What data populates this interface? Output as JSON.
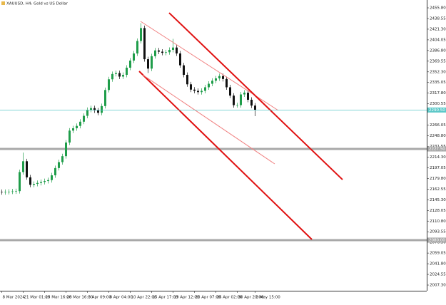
{
  "chart_data": {
    "type": "candlestick",
    "title": "XAUUSD, H4:  Gold vs US Dollar",
    "xlim": [
      -0.5,
      119.1
    ],
    "ylim": [
      1998.1,
      2468.5
    ],
    "yticks": [
      {
        "value": 2007.3,
        "label": "2007.30"
      },
      {
        "value": 2024.55,
        "label": "2024.55"
      },
      {
        "value": 2041.8,
        "label": "2041.80"
      },
      {
        "value": 2059.05,
        "label": "2059.05"
      },
      {
        "value": 2076.3,
        "label": "2076.30"
      },
      {
        "value": 2093.55,
        "label": "2093.55"
      },
      {
        "value": 2110.8,
        "label": "2110.80"
      },
      {
        "value": 2128.05,
        "label": "2128.05"
      },
      {
        "value": 2145.3,
        "label": "2145.30"
      },
      {
        "value": 2162.55,
        "label": "2162.55"
      },
      {
        "value": 2179.8,
        "label": "2179.80"
      },
      {
        "value": 2197.05,
        "label": "2197.05"
      },
      {
        "value": 2214.3,
        "label": "2214.30"
      },
      {
        "value": 2231.55,
        "label": "2231.55"
      },
      {
        "value": 2248.8,
        "label": "2248.80"
      },
      {
        "value": 2266.05,
        "label": "2266.05"
      },
      {
        "value": 2300.55,
        "label": "2300.55"
      },
      {
        "value": 2317.8,
        "label": "2317.80"
      },
      {
        "value": 2335.05,
        "label": "2335.05"
      },
      {
        "value": 2352.3,
        "label": "2352.30"
      },
      {
        "value": 2369.55,
        "label": "2369.55"
      },
      {
        "value": 2386.8,
        "label": "2386.80"
      },
      {
        "value": 2404.05,
        "label": "2404.05"
      },
      {
        "value": 2421.3,
        "label": "2421.30"
      },
      {
        "value": 2438.55,
        "label": "2438.55"
      },
      {
        "value": 2455.8,
        "label": "2455.80"
      }
    ],
    "xticks": [
      {
        "value": 0,
        "label": "8 Mar 2024"
      },
      {
        "value": 6,
        "label": "21 Mar 01:00"
      },
      {
        "value": 12,
        "label": "25 Mar 16:00"
      },
      {
        "value": 18,
        "label": "28 Mar 16:00"
      },
      {
        "value": 24,
        "label": "3 Apr 09:00"
      },
      {
        "value": 30,
        "label": "8 Apr 04:00"
      },
      {
        "value": 36,
        "label": "10 Apr 22:00"
      },
      {
        "value": 42,
        "label": "15 Apr 17:00"
      },
      {
        "value": 48,
        "label": "19 Apr 12:00"
      },
      {
        "value": 54,
        "label": "23 Apr 07:00"
      },
      {
        "value": 60,
        "label": "26 Apr 02:00"
      },
      {
        "value": 66,
        "label": "30 Apr 20:00"
      },
      {
        "value": 71,
        "label": "3 May 15:00"
      }
    ],
    "open": [
      2158.0,
      2157.4,
      2157.9,
      2158.4,
      2158.8,
      2159.3,
      2190.1,
      2207.6,
      2181.6,
      2169.5,
      2171.0,
      2172.5,
      2174.1,
      2175.6,
      2177.1,
      2184.9,
      2196.6,
      2206.2,
      2215.8,
      2237.9,
      2257.2,
      2261.0,
      2264.8,
      2271.6,
      2281.1,
      2290.7,
      2293.6,
      2289.8,
      2286.0,
      2296.9,
      2322.9,
      2340.2,
      2348.8,
      2350.3,
      2344.6,
      2347.4,
      2359.0,
      2370.5,
      2382.0,
      2402.2,
      2423.1,
      2372.7,
      2357.5,
      2377.6,
      2386.9,
      2384.9,
      2383.0,
      2384.0,
      2387.8,
      2391.6,
      2382.0,
      2362.8,
      2347.4,
      2332.1,
      2323.5,
      2321.5,
      2319.5,
      2321.5,
      2327.3,
      2333.0,
      2337.9,
      2341.7,
      2345.5,
      2340.7,
      2327.3,
      2313.8,
      2298.4,
      2298.4,
      2315.7,
      2318.6,
      2307.1,
      2297.7
    ],
    "high": [
      2162.0,
      2161.9,
      2162.4,
      2162.8,
      2163.3,
      2194.1,
      2221.6,
      2211.6,
      2185.6,
      2175.0,
      2176.5,
      2178.1,
      2179.6,
      2181.1,
      2188.9,
      2200.6,
      2210.2,
      2219.8,
      2241.9,
      2261.2,
      2265.0,
      2268.8,
      2275.6,
      2285.1,
      2294.7,
      2297.6,
      2297.6,
      2293.8,
      2300.9,
      2326.9,
      2344.2,
      2352.8,
      2354.3,
      2354.3,
      2351.4,
      2363.0,
      2374.5,
      2386.0,
      2406.2,
      2431.1,
      2427.1,
      2376.7,
      2381.6,
      2390.9,
      2390.9,
      2388.9,
      2388.0,
      2391.8,
      2405.6,
      2395.6,
      2386.0,
      2366.8,
      2351.4,
      2336.1,
      2327.5,
      2325.5,
      2325.5,
      2331.3,
      2337.0,
      2341.9,
      2345.7,
      2349.5,
      2349.5,
      2344.7,
      2331.3,
      2317.8,
      2302.4,
      2319.7,
      2322.6,
      2322.6,
      2311.1,
      2301.7
    ],
    "low": [
      2153.4,
      2153.4,
      2153.9,
      2154.4,
      2154.8,
      2155.3,
      2186.1,
      2177.6,
      2165.5,
      2165.5,
      2167.0,
      2168.5,
      2170.1,
      2171.6,
      2173.1,
      2180.9,
      2192.6,
      2202.2,
      2211.8,
      2233.9,
      2253.2,
      2257.0,
      2260.8,
      2267.6,
      2277.1,
      2286.7,
      2285.8,
      2282.0,
      2282.0,
      2292.9,
      2318.9,
      2336.2,
      2344.8,
      2340.6,
      2340.6,
      2343.4,
      2355.0,
      2366.5,
      2378.0,
      2398.2,
      2368.7,
      2350.5,
      2353.5,
      2373.6,
      2380.9,
      2379.0,
      2379.0,
      2380.0,
      2383.8,
      2378.0,
      2358.8,
      2343.4,
      2328.1,
      2319.5,
      2317.5,
      2315.5,
      2315.5,
      2317.5,
      2323.3,
      2329.0,
      2333.9,
      2337.7,
      2336.7,
      2323.3,
      2309.8,
      2294.4,
      2294.4,
      2294.4,
      2311.7,
      2303.1,
      2293.7,
      2280.5
    ],
    "close": [
      2157.4,
      2157.9,
      2158.4,
      2158.8,
      2159.3,
      2190.1,
      2207.6,
      2181.6,
      2169.5,
      2171.0,
      2172.5,
      2174.1,
      2175.6,
      2177.1,
      2184.9,
      2196.6,
      2206.2,
      2215.8,
      2237.9,
      2257.2,
      2261.0,
      2264.8,
      2271.6,
      2281.1,
      2290.7,
      2293.6,
      2289.8,
      2286.0,
      2296.9,
      2322.9,
      2340.2,
      2348.8,
      2350.3,
      2344.6,
      2347.4,
      2359.0,
      2370.5,
      2382.0,
      2402.2,
      2423.1,
      2372.7,
      2357.5,
      2377.6,
      2386.9,
      2384.9,
      2383.0,
      2384.0,
      2387.8,
      2391.6,
      2382.0,
      2362.8,
      2347.4,
      2332.1,
      2323.5,
      2321.5,
      2319.5,
      2321.5,
      2327.3,
      2333.0,
      2337.9,
      2341.7,
      2345.5,
      2340.7,
      2327.3,
      2313.8,
      2298.4,
      2298.4,
      2315.7,
      2318.6,
      2307.1,
      2297.7,
      2290.5
    ],
    "colors": {
      "up": "#1f9d4a",
      "down": "#111111"
    },
    "price_line": {
      "value": 2290.5,
      "label": "2290.50",
      "color": "#5cc8c8"
    },
    "levels": [
      {
        "value": 2227.5,
        "label": "2227.50",
        "color": "#a8a8a8"
      },
      {
        "value": 2080.0,
        "label": "2080.00",
        "color": "#a8a8a8"
      }
    ],
    "trendlines": [
      {
        "x": [
          38.9,
          77.5
        ],
        "y": [
          2433.9,
          2289.8
        ],
        "color": "#f08080",
        "width": 1
      },
      {
        "x": [
          46.9,
          95.5
        ],
        "y": [
          2447.7,
          2177.9
        ],
        "color": "#e01010",
        "width": 2
      },
      {
        "x": [
          38.5,
          86.9
        ],
        "y": [
          2353.2,
          2081.1
        ],
        "color": "#e01010",
        "width": 2
      },
      {
        "x": [
          39.5,
          76.5
        ],
        "y": [
          2347.4,
          2203.3
        ],
        "color": "#f08080",
        "width": 1
      }
    ]
  }
}
